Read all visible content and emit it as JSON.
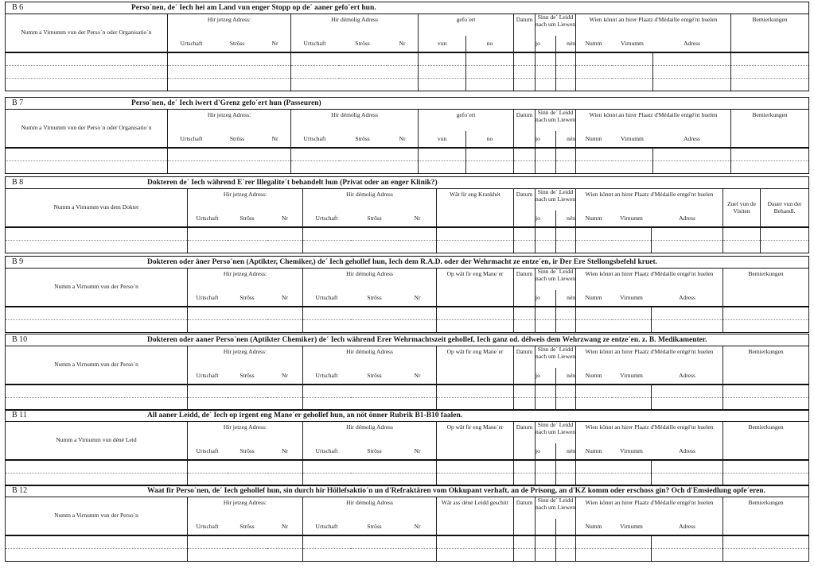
{
  "common": {
    "jetzeg": "Hir jetzeg Adress:",
    "demolig": "Hir démolig Adress",
    "urtschaft": "Urtschaft",
    "stross": "Strôss",
    "nr": "Nr",
    "gefoert": "gefo´ert",
    "vun": "vun",
    "no": "no",
    "datum": "Datum",
    "sinn": "Sinn de´ Leidd nach um Liewen",
    "jo": "jo",
    "nen": "nén",
    "wien": "Wien könnt an hirer Plaatz d'Médaille entgé'nt huelen",
    "numm": "Numm",
    "virnumm": "Virnumm",
    "adress": "Adress",
    "bemierkungen": "Bemierkungen",
    "zuel": "Zuel vun de Visiten",
    "dauer": "Dauer vun der Behandl."
  },
  "sections": [
    {
      "id": "B 6",
      "variant": "A",
      "rows": 3,
      "title": "Perso´nen, de´ Iech hei am Land vun enger Stopp op de´ aaner gefo´ert hun.",
      "name_header": "Numm a Virnumm vun der Perso´n oder Organisatio´n"
    },
    {
      "id": "B 7",
      "variant": "A",
      "rows": 2,
      "title": "Perso´nen, de´ Iech iwert d'Grenz gefo´ert hun (Passeuren)",
      "name_header": "Numm a Virnumm vun der Perso´n oder Organisatio´n"
    },
    {
      "id": "B 8",
      "variant": "B",
      "rows": 2,
      "title": "Dokteren de´ Iech während E´rer Illegalite´t behandelt hun (Privat oder an enger Klinik?)",
      "name_header": "Numm a Virnumm vun dem Dokter",
      "col": "Wât fir eng Krankhét"
    },
    {
      "id": "B 9",
      "variant": "C",
      "rows": 2,
      "title": "Dokteren oder âner Perso´nen (Aptikter, Chemiker,) de´ Iech gehollef hun, Iech dem R.A.D. oder der Wehrmacht ze entze´en, ir Der Ere Stellongsbefehl kruet.",
      "name_header": "Numm a Virnumm vun der Perso´n",
      "col": "Op wât fir eng Mane´er"
    },
    {
      "id": "B 10",
      "variant": "C",
      "rows": 2,
      "title": "Dokteren oder aaner Perso´nen (Aptikter Chemiker) de´ Iech während Erer Wehrmachtszeit gehollef, Iech ganz od. délweis dem Wehrzwang ze entze´en. z. B. Medikamenter.",
      "name_header": "Numm a Virnumm vun der Perso´n",
      "col": "Op wât fir eng Mane´er"
    },
    {
      "id": "B 11",
      "variant": "C",
      "rows": 2,
      "title": "All aaner Leidd, de´ Iech op irgent eng Mane´er gehollef hun, an nöt önner Rubrik B1-B10 faalen.",
      "name_header": "Numm a Virnumm vun déné Leid",
      "col": "Op wât fir eng Mane´er"
    },
    {
      "id": "B 12",
      "variant": "C",
      "rows": 2,
      "title": "Waat fir Perso´nen, de´ Iech gehollef hun, sin durch hir Höllefsaktio´n un d'Refraktären vom Okkupant verhaft, an de Prisong, an d'KZ komm oder erschoss gin? Och d'Emsiedlung opfe´eren.",
      "name_header": "Numm a Virnumm vun der Perso´n",
      "col": "Wât ass déné Leidd geschitt",
      "no_jo_nen": true
    }
  ]
}
